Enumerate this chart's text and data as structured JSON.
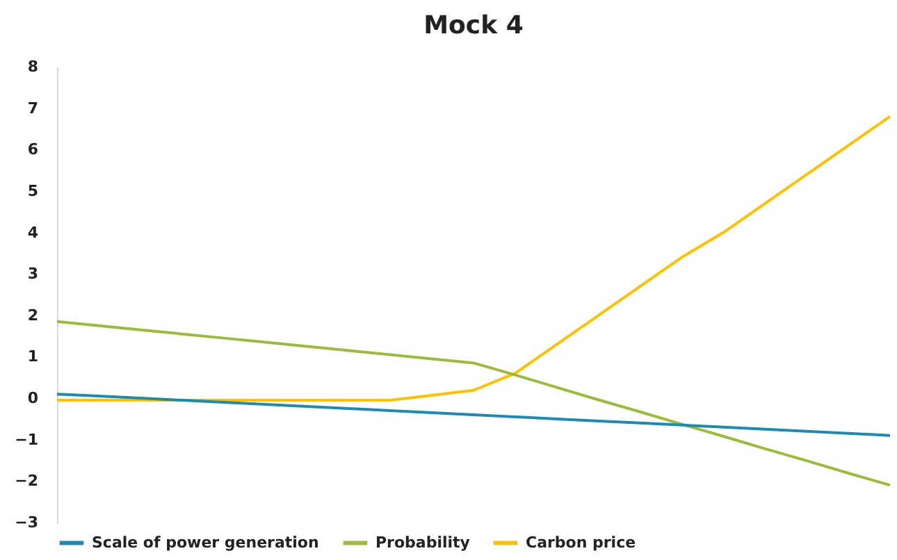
{
  "chart_data": {
    "type": "line",
    "title": "Mock 4",
    "categories": [
      null,
      null,
      null,
      null,
      null,
      null,
      null,
      null,
      null,
      null,
      null,
      null,
      null,
      null,
      null,
      null,
      null,
      null,
      null,
      null,
      null
    ],
    "series": [
      {
        "name": "Scale of power generation",
        "color": "#1b8bb4",
        "values": [
          0.1,
          0.05,
          0,
          -0.05,
          -0.1,
          -0.15,
          -0.2,
          -0.25,
          -0.3,
          -0.35,
          -0.4,
          -0.45,
          -0.5,
          -0.55,
          -0.6,
          -0.65,
          -0.7,
          -0.75,
          -0.8,
          -0.85,
          -0.9
        ]
      },
      {
        "name": "Probability",
        "color": "#9bbb3b",
        "values": [
          1.85,
          1.75,
          1.65,
          1.55,
          1.45,
          1.35,
          1.25,
          1.15,
          1.05,
          0.95,
          0.85,
          0.56,
          0.26,
          -0.04,
          -0.33,
          -0.63,
          -0.92,
          -1.22,
          -1.51,
          -1.81,
          -2.1
        ]
      },
      {
        "name": "Carbon price",
        "color": "#ffc000",
        "values": [
          -0.05,
          -0.05,
          -0.05,
          -0.05,
          -0.05,
          -0.05,
          -0.05,
          -0.05,
          -0.05,
          0.07,
          0.19,
          0.6,
          1.3,
          2.0,
          2.7,
          3.4,
          4.0,
          4.7,
          5.4,
          6.1,
          6.8
        ]
      }
    ],
    "ylim": [
      -3,
      8
    ],
    "yticks": [
      -3,
      -2,
      -1,
      0,
      1,
      2,
      3,
      4,
      5,
      6,
      7,
      8
    ],
    "tick_labels": "y",
    "legend": "bottom",
    "grid": false
  }
}
